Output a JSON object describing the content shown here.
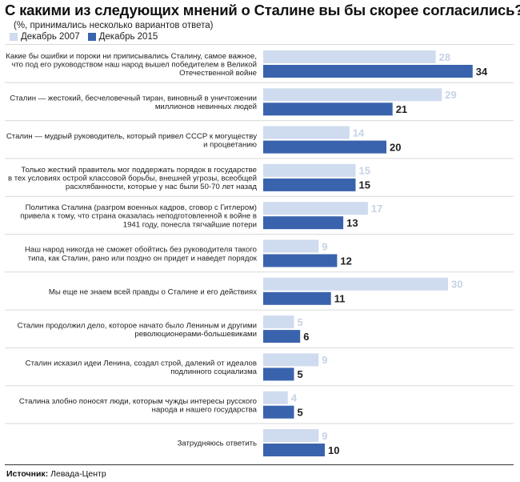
{
  "title": "С какими из следующих мнений о Сталине вы бы скорее согласились?",
  "subtitle": "(%, принимались несколько вариантов ответа)",
  "source_label": "Источник:",
  "source_value": "Левада-Центр",
  "colors": {
    "light": "#cfdbee",
    "dark": "#3a63ad",
    "light_label": "#c6d2e6",
    "dark_label": "#222222",
    "divider": "#d9d9d9"
  },
  "chart_data": {
    "type": "bar",
    "orientation": "horizontal",
    "categories": [
      [
        "Какие бы ошибки и пороки ни приписывались Сталину, самое важное,",
        "что под его руководством наш народ вышел победителем в Великой",
        "Отечественной войне"
      ],
      [
        "Сталин — жестокий, бесчеловечный тиран, виновный в уничтожении",
        "миллионов невинных людей"
      ],
      [
        "Сталин — мудрый руководитель, который привел СССР к могуществу",
        "и процветанию"
      ],
      [
        "Только жесткий правитель мог поддержать порядок в государстве",
        "в тех условиях острой классовой борьбы, внешней угрозы, всеобщей",
        "расхлябанности, которые у нас были 50-70 лет назад"
      ],
      [
        "Политика Сталина (разгром военных кадров, сговор с Гитлером)",
        "привела к тому, что страна оказалась неподготовленной к войне в",
        "1941 году, понесла тягчайшие потери"
      ],
      [
        "Наш народ никогда не сможет обойтись без руководителя такого",
        "типа, как Сталин, рано или поздно он придет и наведет порядок"
      ],
      [
        "Мы еще не знаем всей правды о Сталине и его действиях"
      ],
      [
        "Сталин продолжил дело, которое начато было Лениным и другими",
        "революционерами-большевиками"
      ],
      [
        "Сталин исказил идеи Ленина, создал строй, далекий от идеалов",
        "подлинного социализма"
      ],
      [
        "Сталина злобно поносят люди, которым чужды интересы русского",
        "народа и нашего государства"
      ],
      [
        "Затрудняюсь ответить"
      ]
    ],
    "series": [
      {
        "name": "Декабрь 2007",
        "values": [
          28,
          29,
          14,
          15,
          17,
          9,
          30,
          5,
          9,
          4,
          9
        ]
      },
      {
        "name": "Декабрь 2015",
        "values": [
          34,
          21,
          20,
          15,
          13,
          12,
          11,
          6,
          5,
          5,
          10
        ]
      }
    ],
    "xlim": [
      0,
      35
    ],
    "grid": false,
    "legend_position": "top-left"
  }
}
